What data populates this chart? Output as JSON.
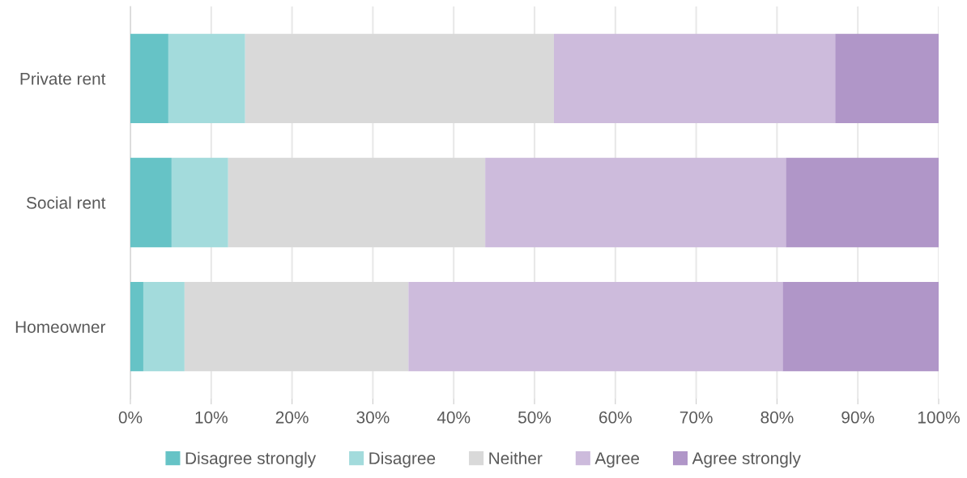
{
  "chart_data": {
    "type": "bar",
    "orientation": "horizontal",
    "stacked": true,
    "categories": [
      "Private rent",
      "Social rent",
      "Homeowner"
    ],
    "series": [
      {
        "name": "Disagree strongly",
        "color": "#66c3c6",
        "values": [
          4.7,
          5.1,
          1.6
        ]
      },
      {
        "name": "Disagree",
        "color": "#a3dbdc",
        "values": [
          9.5,
          7.0,
          5.1
        ]
      },
      {
        "name": "Neither",
        "color": "#d9d9d9",
        "values": [
          38.2,
          31.8,
          27.7
        ]
      },
      {
        "name": "Agree",
        "color": "#cdbbdc",
        "values": [
          34.8,
          37.2,
          46.3
        ]
      },
      {
        "name": "Agree strongly",
        "color": "#b096c8",
        "values": [
          12.8,
          18.9,
          19.3
        ]
      }
    ],
    "xlim": [
      0,
      100
    ],
    "xticks": [
      {
        "value": 0,
        "label": "0%"
      },
      {
        "value": 10,
        "label": "10%"
      },
      {
        "value": 20,
        "label": "20%"
      },
      {
        "value": 30,
        "label": "30%"
      },
      {
        "value": 40,
        "label": "40%"
      },
      {
        "value": 50,
        "label": "50%"
      },
      {
        "value": 60,
        "label": "60%"
      },
      {
        "value": 70,
        "label": "70%"
      },
      {
        "value": 80,
        "label": "80%"
      },
      {
        "value": 90,
        "label": "90%"
      },
      {
        "value": 100,
        "label": "100%"
      }
    ],
    "grid": "x",
    "legend": "bottom"
  }
}
